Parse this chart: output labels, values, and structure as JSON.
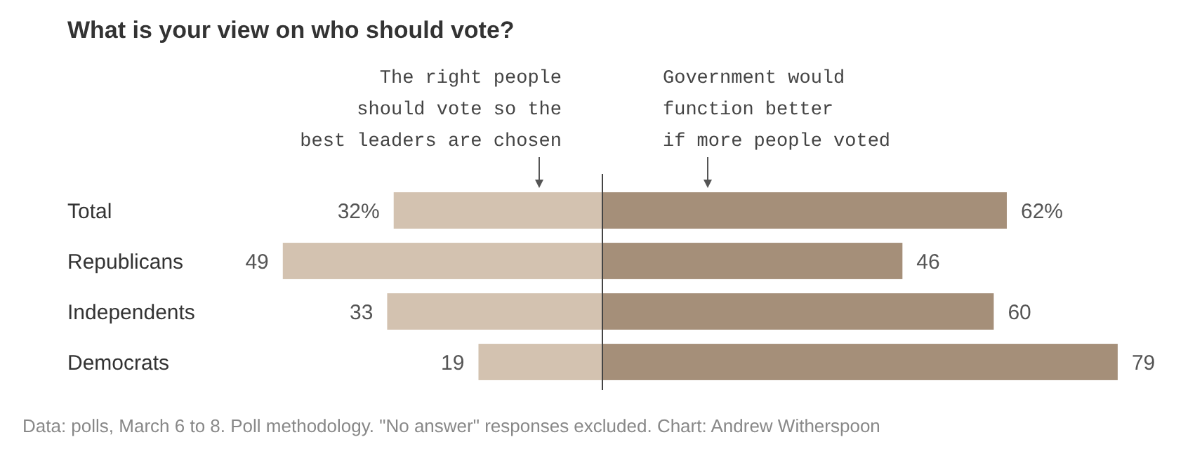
{
  "chart_data": [
    {
      "type": "bar",
      "orientation": "horizontal",
      "title": "What is your view on who should vote?",
      "categories": [
        "Total",
        "Republicans",
        "Independents",
        "Democrats"
      ],
      "series": [
        {
          "color": "#d3c2b0",
          "values": [
            32,
            49,
            33,
            19
          ],
          "value_labels": [
            "32%",
            "49",
            "33",
            "19"
          ]
        }
      ],
      "tick_labels": "y",
      "annotations": [
        "The right people\nshould vote so the\nbest leaders are chosen",
        "Data: polls, March 6 to 8. Poll methodology. \"No answer\" responses excluded. Chart: Andrew Witherspoon"
      ]
    },
    {
      "type": "bar",
      "orientation": "horizontal",
      "categories": [
        null,
        null,
        null,
        null
      ],
      "series": [
        {
          "color": "#a58f79",
          "values": [
            62,
            46,
            60,
            79
          ],
          "value_labels": [
            "62%",
            "46",
            "60",
            "79"
          ]
        }
      ],
      "tick_labels": false,
      "annotations": [
        "Government would\nfunction better\nif more people voted"
      ]
    }
  ]
}
